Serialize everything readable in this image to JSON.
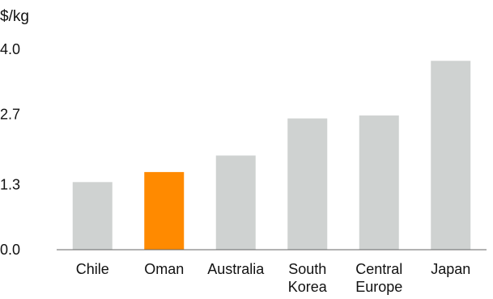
{
  "chart_data": {
    "type": "bar",
    "unit_label": "$/kg",
    "categories": [
      [
        "Chile"
      ],
      [
        "Oman"
      ],
      [
        "Australia"
      ],
      [
        "South",
        "Korea"
      ],
      [
        "Central",
        "Europe"
      ],
      [
        "Japan"
      ]
    ],
    "series": [
      {
        "values": [
          1.35,
          1.55,
          1.88,
          2.62,
          2.68,
          3.77
        ],
        "colors": [
          "#cfd2d1",
          "#ff8a00",
          "#cfd2d1",
          "#cfd2d1",
          "#cfd2d1",
          "#cfd2d1"
        ]
      }
    ],
    "y_ticks": [
      "0.0",
      "1.3",
      "2.7",
      "4.0"
    ],
    "ylim": [
      0,
      4.0
    ],
    "grid": false,
    "legend": "none"
  }
}
